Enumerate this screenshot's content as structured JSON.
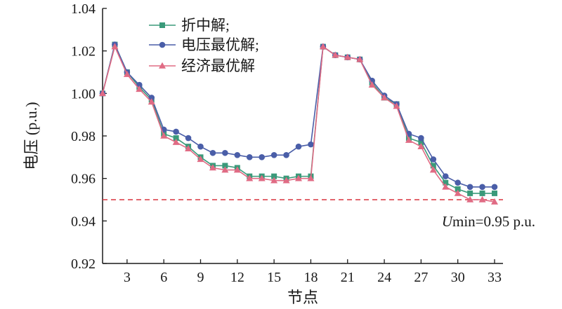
{
  "chart_data": {
    "type": "line",
    "xlabel": "节点",
    "ylabel": "电压 (p.u.)",
    "xlim": [
      1,
      33
    ],
    "ylim": [
      0.92,
      1.04
    ],
    "xticks": [
      3,
      6,
      9,
      12,
      15,
      18,
      21,
      24,
      27,
      30,
      33
    ],
    "yticks": [
      0.92,
      0.94,
      0.96,
      0.98,
      1.0,
      1.02,
      1.04
    ],
    "ytick_labels": [
      "0.92",
      "0.94",
      "0.96",
      "0.98",
      "1.00",
      "1.02",
      "1.04"
    ],
    "x": [
      1,
      2,
      3,
      4,
      5,
      6,
      7,
      8,
      9,
      10,
      11,
      12,
      13,
      14,
      15,
      16,
      17,
      18,
      19,
      20,
      21,
      22,
      23,
      24,
      25,
      26,
      27,
      28,
      29,
      30,
      31,
      32,
      33
    ],
    "legend_position": "top-left",
    "grid": false,
    "series": [
      {
        "name": "折中解;",
        "color": "#3a9a7a",
        "marker": "square",
        "values": [
          1.0,
          1.023,
          1.01,
          1.003,
          0.997,
          0.981,
          0.979,
          0.975,
          0.97,
          0.966,
          0.966,
          0.965,
          0.961,
          0.961,
          0.961,
          0.96,
          0.961,
          0.961,
          1.022,
          1.018,
          1.017,
          1.016,
          1.005,
          0.998,
          0.995,
          0.979,
          0.977,
          0.966,
          0.958,
          0.955,
          0.953,
          0.953,
          0.953
        ]
      },
      {
        "name": "电压最优解;",
        "color": "#4a5ea8",
        "marker": "circle",
        "values": [
          1.0,
          1.023,
          1.01,
          1.004,
          0.998,
          0.983,
          0.982,
          0.979,
          0.975,
          0.972,
          0.972,
          0.971,
          0.97,
          0.97,
          0.971,
          0.971,
          0.975,
          0.976,
          1.022,
          1.018,
          1.017,
          1.016,
          1.006,
          0.999,
          0.995,
          0.981,
          0.979,
          0.969,
          0.961,
          0.958,
          0.956,
          0.956,
          0.956
        ]
      },
      {
        "name": "经济最优解",
        "color": "#e06b84",
        "marker": "triangle",
        "values": [
          1.0,
          1.022,
          1.009,
          1.002,
          0.996,
          0.98,
          0.977,
          0.974,
          0.969,
          0.965,
          0.964,
          0.964,
          0.96,
          0.96,
          0.959,
          0.959,
          0.96,
          0.96,
          1.022,
          1.018,
          1.017,
          1.016,
          1.004,
          0.998,
          0.994,
          0.978,
          0.975,
          0.964,
          0.956,
          0.953,
          0.95,
          0.95,
          0.949
        ]
      }
    ],
    "reference_line": {
      "y": 0.95,
      "color": "#d9333f",
      "style": "dashed",
      "label_italic": "U",
      "label_rest": "min=0.95 p.u."
    }
  }
}
